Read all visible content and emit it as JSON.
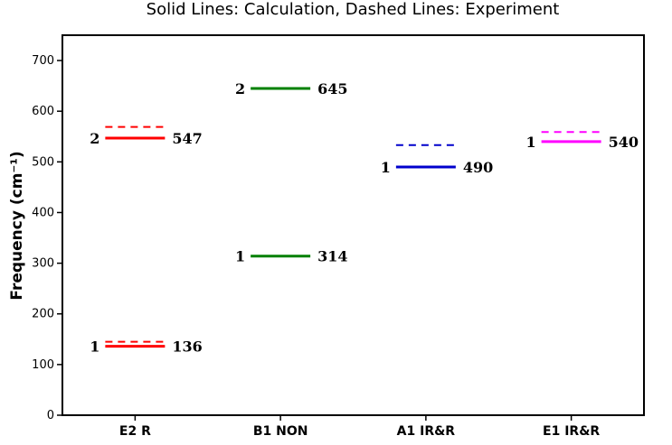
{
  "chart_data": {
    "type": "energy-level",
    "title": "Solid Lines: Calculation, Dashed Lines: Experiment",
    "ylabel": "Frequency (cm⁻¹)",
    "ylim": [
      0,
      750
    ],
    "yticks": [
      0,
      100,
      200,
      300,
      400,
      500,
      600,
      700
    ],
    "grid": false,
    "categories": [
      "E2 R",
      "B1 NON",
      "A1 IR&R",
      "E1 IR&R"
    ],
    "groups": [
      {
        "category": "E2 R",
        "color": "#ff0000",
        "calculated": [
          {
            "index": "1",
            "value": 136,
            "label": "136"
          },
          {
            "index": "2",
            "value": 547,
            "label": "547"
          }
        ],
        "experimental": [
          145,
          569
        ]
      },
      {
        "category": "B1 NON",
        "color": "#008000",
        "calculated": [
          {
            "index": "1",
            "value": 314,
            "label": "314"
          },
          {
            "index": "2",
            "value": 645,
            "label": "645"
          }
        ],
        "experimental": []
      },
      {
        "category": "A1 IR&R",
        "color": "#0000cc",
        "calculated": [
          {
            "index": "1",
            "value": 490,
            "label": "490"
          }
        ],
        "experimental": [
          533
        ]
      },
      {
        "category": "E1 IR&R",
        "color": "#ff00ff",
        "calculated": [
          {
            "index": "1",
            "value": 540,
            "label": "540"
          }
        ],
        "experimental": [
          559
        ]
      }
    ]
  }
}
